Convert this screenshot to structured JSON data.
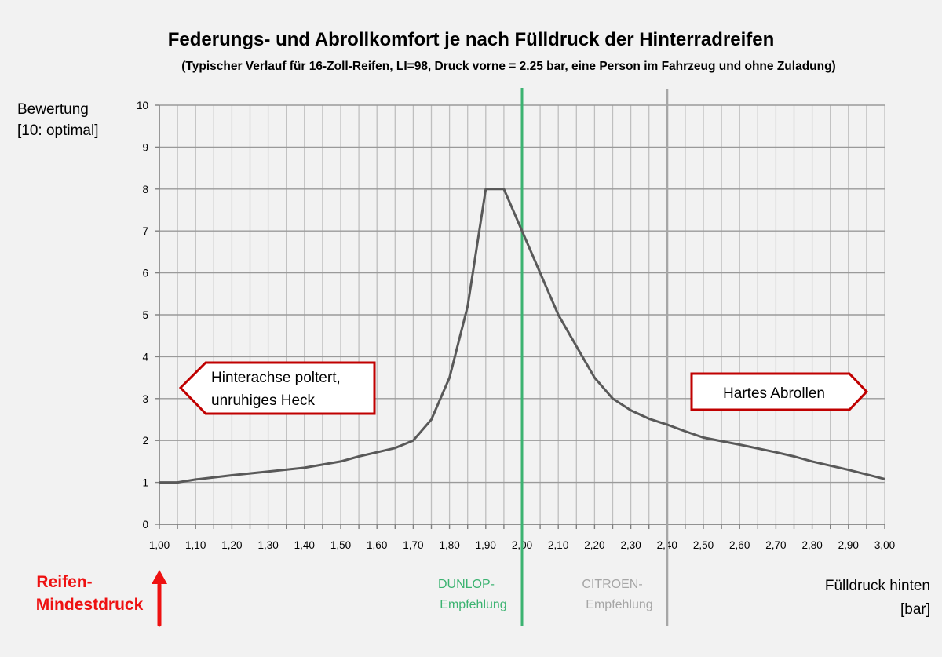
{
  "chart_data": {
    "type": "line",
    "title": "Federungs- und Abrollkomfort je nach Fülldruck der Hinterradreifen",
    "subtitle": "(Typischer Verlauf für 16-Zoll-Reifen, LI=98, Druck vorne = 2.25 bar, eine Person im Fahrzeug und ohne Zuladung)",
    "ylabel_line1": "Bewertung",
    "ylabel_line2": "[10: optimal]",
    "xlabel_line1": "Fülldruck hinten",
    "xlabel_line2": "[bar]",
    "xlim": [
      1.0,
      3.0
    ],
    "ylim": [
      0,
      10
    ],
    "grid": true,
    "x_ticks": [
      "1,00",
      "1,10",
      "1,20",
      "1,30",
      "1,40",
      "1,50",
      "1,60",
      "1,70",
      "1,80",
      "1,90",
      "2,00",
      "2,10",
      "2,20",
      "2,30",
      "2,40",
      "2,50",
      "2,60",
      "2,70",
      "2,80",
      "2,90",
      "3,00"
    ],
    "y_ticks": [
      "0",
      "1",
      "2",
      "3",
      "4",
      "5",
      "6",
      "7",
      "8",
      "9",
      "10"
    ],
    "series": [
      {
        "color": "#595959",
        "x": [
          1.0,
          1.05,
          1.1,
          1.2,
          1.3,
          1.4,
          1.5,
          1.55,
          1.6,
          1.65,
          1.7,
          1.75,
          1.8,
          1.85,
          1.9,
          1.95,
          2.0,
          2.05,
          2.1,
          2.15,
          2.2,
          2.25,
          2.3,
          2.35,
          2.4,
          2.45,
          2.5,
          2.6,
          2.7,
          2.75,
          2.8,
          2.9,
          3.0
        ],
        "y": [
          1.0,
          1.0,
          1.07,
          1.17,
          1.26,
          1.35,
          1.5,
          1.62,
          1.72,
          1.82,
          2.0,
          2.5,
          3.5,
          5.2,
          8.0,
          8.0,
          7.0,
          6.0,
          5.0,
          4.25,
          3.5,
          3.0,
          2.72,
          2.52,
          2.38,
          2.22,
          2.07,
          1.9,
          1.72,
          1.62,
          1.5,
          1.3,
          1.08
        ]
      }
    ],
    "annotations": {
      "left_callout": {
        "line1": "Hinterachse poltert,",
        "line2": "unruhiges Heck"
      },
      "right_callout": {
        "text": "Hartes Abrollen"
      },
      "dunlop": {
        "x": 2.0,
        "line1": "DUNLOP-",
        "line2": "Empfehlung",
        "color": "#3cb371"
      },
      "citroen": {
        "x": 2.4,
        "line1": "CITROEN-",
        "line2": "Empfehlung",
        "color": "#a6a6a6"
      },
      "mindestdruck": {
        "x": 1.0,
        "line1": "Reifen-",
        "line2": "Mindestdruck",
        "color": "#ee1111"
      }
    }
  }
}
